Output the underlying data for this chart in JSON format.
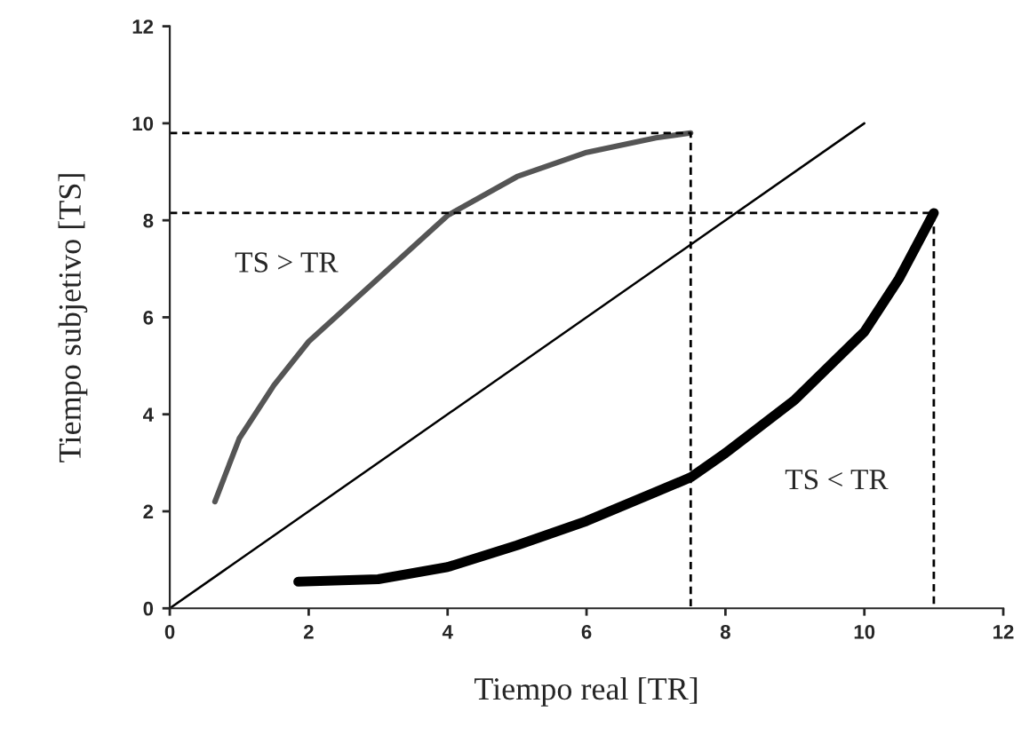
{
  "chart_data": {
    "type": "line",
    "xlabel": "Tiempo real [TR]",
    "ylabel": "Tiempo subjetivo [TS]",
    "xlim": [
      0,
      12
    ],
    "ylim": [
      0,
      12
    ],
    "xticks": [
      0,
      2,
      4,
      6,
      8,
      10,
      12
    ],
    "yticks": [
      0,
      2,
      4,
      6,
      8,
      10,
      12
    ],
    "grid": false,
    "legend": false,
    "marker": "none",
    "series": [
      {
        "color": "#555555",
        "x": [
          0.65,
          1,
          1.5,
          2,
          3,
          4,
          5,
          6,
          7,
          7.5
        ],
        "values": [
          2.2,
          3.5,
          4.6,
          5.5,
          6.8,
          8.1,
          8.9,
          9.4,
          9.7,
          9.8
        ],
        "line_style": "solid"
      },
      {
        "color": "#000000",
        "x": [
          0,
          10
        ],
        "values": [
          0,
          10
        ],
        "line_style": "solid"
      },
      {
        "color": "#000000",
        "x": [
          1.85,
          3,
          4,
          5,
          6,
          7,
          7.5,
          8,
          9,
          10,
          10.5,
          11
        ],
        "values": [
          0.55,
          0.6,
          0.85,
          1.3,
          1.8,
          2.4,
          2.7,
          3.2,
          4.3,
          5.7,
          6.8,
          8.15
        ],
        "line_style": "solid"
      },
      {
        "color": "#000000",
        "x": [
          0,
          7.5,
          7.5
        ],
        "values": [
          9.8,
          9.8,
          0
        ],
        "line_style": "dashed"
      },
      {
        "color": "#000000",
        "x": [
          0,
          11,
          11
        ],
        "values": [
          8.15,
          8.15,
          0
        ],
        "line_style": "dashed"
      }
    ],
    "annotations": [
      "TS > TR",
      "TS < TR"
    ]
  }
}
